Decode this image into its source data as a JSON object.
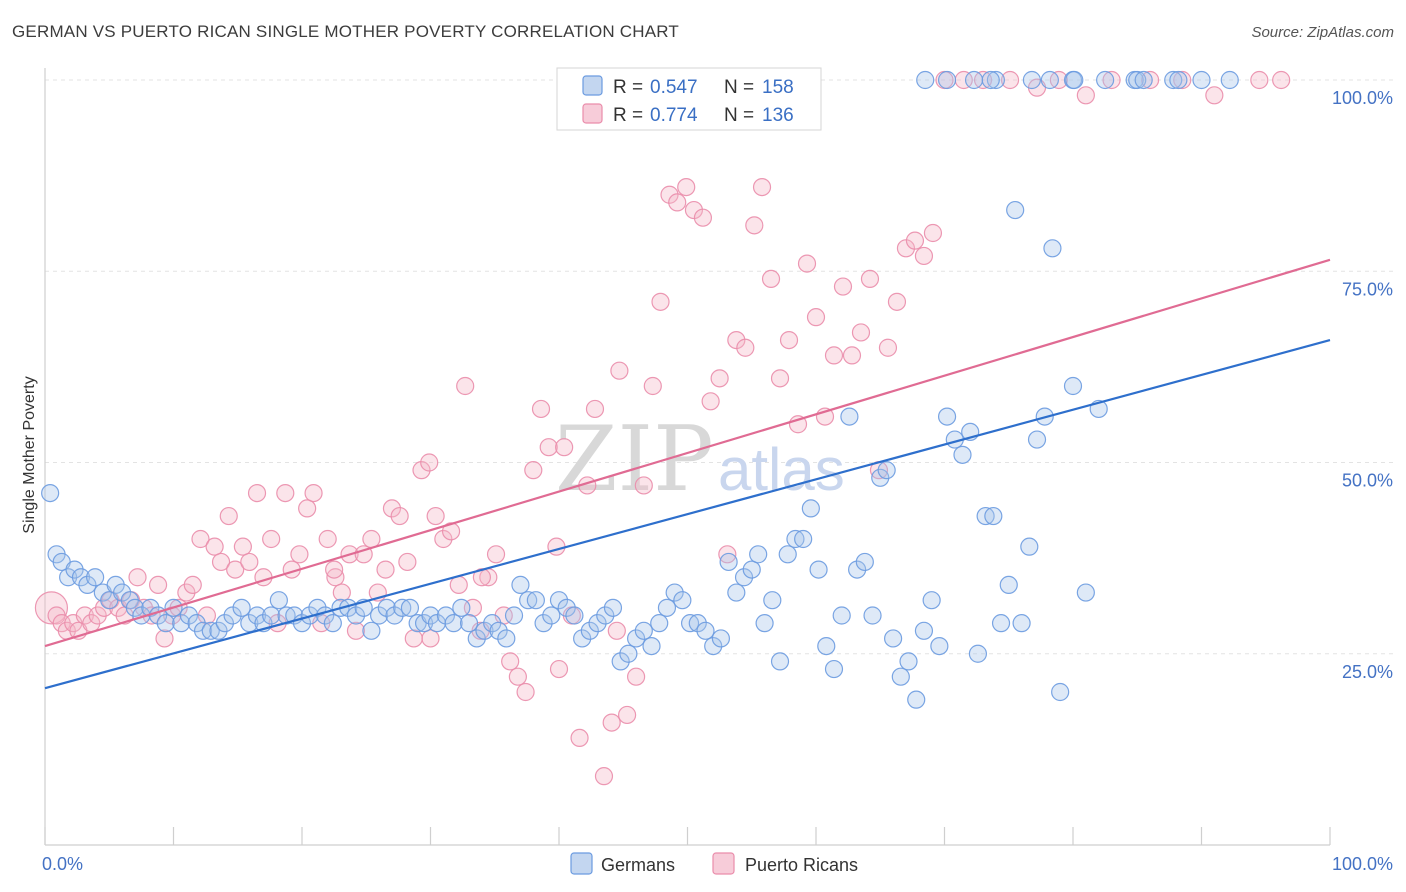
{
  "header": {
    "title": "GERMAN VS PUERTO RICAN SINGLE MOTHER POVERTY CORRELATION CHART",
    "source": "Source: ZipAtlas.com"
  },
  "watermark": {
    "zip": "ZIP",
    "atlas": "atlas"
  },
  "legend": {
    "rows": [
      {
        "r_label": "R =",
        "r_value": "0.547",
        "n_label": "N =",
        "n_value": "158"
      },
      {
        "r_label": "R =",
        "r_value": "0.774",
        "n_label": "N =",
        "n_value": "136"
      }
    ]
  },
  "bottom_legend": {
    "german": "Germans",
    "puerto_rican": "Puerto Ricans"
  },
  "colors": {
    "german_fill": "#a9c4ea",
    "german_stroke": "#6b9be0",
    "german_line": "#2e6fcc",
    "pr_fill": "#f4b7c9",
    "pr_stroke": "#ea8dab",
    "pr_line": "#e06b93",
    "axis_text": "#4472c4"
  },
  "chart_data": {
    "type": "scatter",
    "title": "GERMAN VS PUERTO RICAN SINGLE MOTHER POVERTY CORRELATION CHART",
    "xlabel": "",
    "ylabel": "Single Mother Poverty",
    "xlim": [
      0,
      100
    ],
    "ylim": [
      0,
      105
    ],
    "x_tick_labels": [
      "0.0%",
      "100.0%"
    ],
    "y_ticks": [
      {
        "value": 25,
        "label": "25.0%"
      },
      {
        "value": 50,
        "label": "50.0%"
      },
      {
        "value": 75,
        "label": "75.0%"
      },
      {
        "value": 100,
        "label": "100.0%"
      }
    ],
    "series": [
      {
        "name": "Germans",
        "r": 0.547,
        "n": 158,
        "trend": {
          "x": [
            0,
            100
          ],
          "y": [
            20.5,
            66.0
          ]
        },
        "points": [
          [
            0.4,
            46
          ],
          [
            0.9,
            38
          ],
          [
            1.3,
            37
          ],
          [
            1.8,
            35
          ],
          [
            2.3,
            36
          ],
          [
            2.8,
            35
          ],
          [
            3.3,
            34
          ],
          [
            3.9,
            35
          ],
          [
            4.5,
            33
          ],
          [
            5.0,
            32
          ],
          [
            5.5,
            34
          ],
          [
            6.0,
            33
          ],
          [
            6.6,
            32
          ],
          [
            7.0,
            31
          ],
          [
            7.5,
            30
          ],
          [
            8.2,
            31
          ],
          [
            8.8,
            30
          ],
          [
            9.4,
            29
          ],
          [
            10.0,
            31
          ],
          [
            10.6,
            29
          ],
          [
            11.2,
            30
          ],
          [
            11.8,
            29
          ],
          [
            12.3,
            28
          ],
          [
            12.9,
            28
          ],
          [
            13.5,
            28
          ],
          [
            14.0,
            29
          ],
          [
            14.6,
            30
          ],
          [
            15.3,
            31
          ],
          [
            15.9,
            29
          ],
          [
            16.5,
            30
          ],
          [
            17.0,
            29
          ],
          [
            17.6,
            30
          ],
          [
            18.2,
            32
          ],
          [
            18.8,
            30
          ],
          [
            19.4,
            30
          ],
          [
            20.0,
            29
          ],
          [
            20.6,
            30
          ],
          [
            21.2,
            31
          ],
          [
            21.8,
            30
          ],
          [
            22.4,
            29
          ],
          [
            23.0,
            31
          ],
          [
            23.6,
            31
          ],
          [
            24.2,
            30
          ],
          [
            24.8,
            31
          ],
          [
            25.4,
            28
          ],
          [
            26.0,
            30
          ],
          [
            26.6,
            31
          ],
          [
            27.2,
            30
          ],
          [
            27.8,
            31
          ],
          [
            28.4,
            31
          ],
          [
            29.0,
            29
          ],
          [
            29.5,
            29
          ],
          [
            30.0,
            30
          ],
          [
            30.5,
            29
          ],
          [
            31.2,
            30
          ],
          [
            31.8,
            29
          ],
          [
            32.4,
            31
          ],
          [
            33.0,
            29
          ],
          [
            33.6,
            27
          ],
          [
            34.2,
            28
          ],
          [
            34.8,
            29
          ],
          [
            35.3,
            28
          ],
          [
            35.9,
            27
          ],
          [
            36.5,
            30
          ],
          [
            37.0,
            34
          ],
          [
            37.6,
            32
          ],
          [
            38.2,
            32
          ],
          [
            38.8,
            29
          ],
          [
            39.4,
            30
          ],
          [
            40.0,
            32
          ],
          [
            40.6,
            31
          ],
          [
            41.2,
            30
          ],
          [
            41.8,
            27
          ],
          [
            42.4,
            28
          ],
          [
            43.0,
            29
          ],
          [
            43.6,
            30
          ],
          [
            44.2,
            31
          ],
          [
            44.8,
            24
          ],
          [
            45.4,
            25
          ],
          [
            46.0,
            27
          ],
          [
            46.6,
            28
          ],
          [
            47.2,
            26
          ],
          [
            47.8,
            29
          ],
          [
            48.4,
            31
          ],
          [
            49.0,
            33
          ],
          [
            49.6,
            32
          ],
          [
            50.2,
            29
          ],
          [
            50.8,
            29
          ],
          [
            51.4,
            28
          ],
          [
            52.0,
            26
          ],
          [
            52.6,
            27
          ],
          [
            53.2,
            37
          ],
          [
            53.8,
            33
          ],
          [
            54.4,
            35
          ],
          [
            55.0,
            36
          ],
          [
            55.5,
            38
          ],
          [
            56.0,
            29
          ],
          [
            56.6,
            32
          ],
          [
            57.2,
            24
          ],
          [
            57.8,
            38
          ],
          [
            58.4,
            40
          ],
          [
            59.0,
            40
          ],
          [
            59.6,
            44
          ],
          [
            60.2,
            36
          ],
          [
            60.8,
            26
          ],
          [
            61.4,
            23
          ],
          [
            62.0,
            30
          ],
          [
            62.6,
            56
          ],
          [
            63.2,
            36
          ],
          [
            63.8,
            37
          ],
          [
            64.4,
            30
          ],
          [
            65.0,
            48
          ],
          [
            65.5,
            49
          ],
          [
            66.0,
            27
          ],
          [
            66.6,
            22
          ],
          [
            67.2,
            24
          ],
          [
            67.8,
            19
          ],
          [
            68.4,
            28
          ],
          [
            69.0,
            32
          ],
          [
            69.6,
            26
          ],
          [
            70.2,
            56
          ],
          [
            70.8,
            53
          ],
          [
            71.4,
            51
          ],
          [
            72.0,
            54
          ],
          [
            72.6,
            25
          ],
          [
            73.2,
            43
          ],
          [
            73.8,
            43
          ],
          [
            74.4,
            29
          ],
          [
            75.0,
            34
          ],
          [
            75.5,
            83
          ],
          [
            76.0,
            29
          ],
          [
            76.6,
            39
          ],
          [
            77.2,
            53
          ],
          [
            77.8,
            56
          ],
          [
            78.4,
            78
          ],
          [
            79.0,
            20
          ],
          [
            80.0,
            60
          ],
          [
            81.0,
            33
          ],
          [
            82.0,
            57
          ],
          [
            68.5,
            100
          ],
          [
            70.2,
            100
          ],
          [
            72.3,
            100
          ],
          [
            74.0,
            100
          ],
          [
            76.8,
            100
          ],
          [
            78.2,
            100
          ],
          [
            80.0,
            100
          ],
          [
            80.1,
            100
          ],
          [
            82.5,
            100
          ],
          [
            84.8,
            100
          ],
          [
            85.0,
            100
          ],
          [
            87.8,
            100
          ],
          [
            92.2,
            100
          ],
          [
            73.6,
            100
          ],
          [
            85.5,
            100
          ],
          [
            90.0,
            100
          ],
          [
            88.2,
            100
          ]
        ]
      },
      {
        "name": "Puerto Ricans",
        "r": 0.774,
        "n": 136,
        "trend": {
          "x": [
            0,
            100
          ],
          "y": [
            26.0,
            76.5
          ]
        },
        "points": [
          [
            0.5,
            31
          ],
          [
            0.9,
            30
          ],
          [
            1.3,
            29
          ],
          [
            1.7,
            28
          ],
          [
            2.2,
            29
          ],
          [
            2.6,
            28
          ],
          [
            3.1,
            30
          ],
          [
            3.6,
            29
          ],
          [
            4.1,
            30
          ],
          [
            4.6,
            31
          ],
          [
            5.1,
            32
          ],
          [
            5.7,
            31
          ],
          [
            6.2,
            30
          ],
          [
            6.7,
            32
          ],
          [
            7.2,
            35
          ],
          [
            7.7,
            31
          ],
          [
            8.3,
            30
          ],
          [
            8.8,
            34
          ],
          [
            9.3,
            27
          ],
          [
            9.9,
            30
          ],
          [
            10.4,
            31
          ],
          [
            11.0,
            33
          ],
          [
            11.5,
            34
          ],
          [
            12.1,
            40
          ],
          [
            12.6,
            30
          ],
          [
            13.2,
            39
          ],
          [
            13.7,
            37
          ],
          [
            14.3,
            43
          ],
          [
            14.8,
            36
          ],
          [
            15.4,
            39
          ],
          [
            15.9,
            37
          ],
          [
            16.5,
            46
          ],
          [
            17.0,
            35
          ],
          [
            17.6,
            40
          ],
          [
            18.1,
            29
          ],
          [
            18.7,
            46
          ],
          [
            19.2,
            36
          ],
          [
            19.8,
            38
          ],
          [
            20.4,
            44
          ],
          [
            20.9,
            46
          ],
          [
            21.5,
            29
          ],
          [
            22.0,
            40
          ],
          [
            22.6,
            35
          ],
          [
            23.1,
            33
          ],
          [
            23.7,
            38
          ],
          [
            24.2,
            28
          ],
          [
            24.8,
            38
          ],
          [
            25.4,
            40
          ],
          [
            25.9,
            33
          ],
          [
            26.5,
            36
          ],
          [
            27.0,
            44
          ],
          [
            27.6,
            43
          ],
          [
            28.2,
            37
          ],
          [
            28.7,
            27
          ],
          [
            29.3,
            49
          ],
          [
            29.9,
            50
          ],
          [
            30.4,
            43
          ],
          [
            31.0,
            40
          ],
          [
            31.6,
            41
          ],
          [
            32.2,
            34
          ],
          [
            32.7,
            60
          ],
          [
            33.3,
            31
          ],
          [
            33.9,
            28
          ],
          [
            34.5,
            35
          ],
          [
            35.1,
            38
          ],
          [
            35.7,
            30
          ],
          [
            36.2,
            24
          ],
          [
            36.8,
            22
          ],
          [
            37.4,
            20
          ],
          [
            38.0,
            49
          ],
          [
            38.6,
            57
          ],
          [
            39.2,
            52
          ],
          [
            39.8,
            39
          ],
          [
            40.4,
            52
          ],
          [
            41.0,
            30
          ],
          [
            41.6,
            14
          ],
          [
            42.2,
            47
          ],
          [
            42.8,
            57
          ],
          [
            43.5,
            9
          ],
          [
            44.1,
            16
          ],
          [
            44.7,
            62
          ],
          [
            45.3,
            17
          ],
          [
            46.0,
            22
          ],
          [
            46.6,
            47
          ],
          [
            47.3,
            60
          ],
          [
            47.9,
            71
          ],
          [
            48.6,
            85
          ],
          [
            49.2,
            84
          ],
          [
            49.9,
            86
          ],
          [
            50.5,
            83
          ],
          [
            51.2,
            82
          ],
          [
            51.8,
            58
          ],
          [
            52.5,
            61
          ],
          [
            53.1,
            38
          ],
          [
            53.8,
            66
          ],
          [
            54.5,
            65
          ],
          [
            55.2,
            81
          ],
          [
            55.8,
            86
          ],
          [
            56.5,
            74
          ],
          [
            57.2,
            61
          ],
          [
            57.9,
            66
          ],
          [
            58.6,
            55
          ],
          [
            59.3,
            76
          ],
          [
            60.0,
            69
          ],
          [
            60.7,
            56
          ],
          [
            61.4,
            64
          ],
          [
            62.1,
            73
          ],
          [
            62.8,
            64
          ],
          [
            63.5,
            67
          ],
          [
            64.2,
            74
          ],
          [
            64.9,
            49
          ],
          [
            65.6,
            65
          ],
          [
            66.3,
            71
          ],
          [
            67.0,
            78
          ],
          [
            67.7,
            79
          ],
          [
            68.4,
            77
          ],
          [
            69.1,
            80
          ],
          [
            70.0,
            100
          ],
          [
            71.5,
            100
          ],
          [
            73.0,
            100
          ],
          [
            75.1,
            100
          ],
          [
            77.2,
            99
          ],
          [
            78.9,
            100
          ],
          [
            81.0,
            98
          ],
          [
            83.0,
            100
          ],
          [
            86.0,
            100
          ],
          [
            88.5,
            100
          ],
          [
            91.0,
            98
          ],
          [
            94.5,
            100
          ],
          [
            96.2,
            100
          ],
          [
            30.0,
            27
          ],
          [
            34.0,
            35
          ],
          [
            44.5,
            28
          ],
          [
            40.0,
            23
          ],
          [
            22.5,
            36
          ]
        ]
      }
    ]
  }
}
